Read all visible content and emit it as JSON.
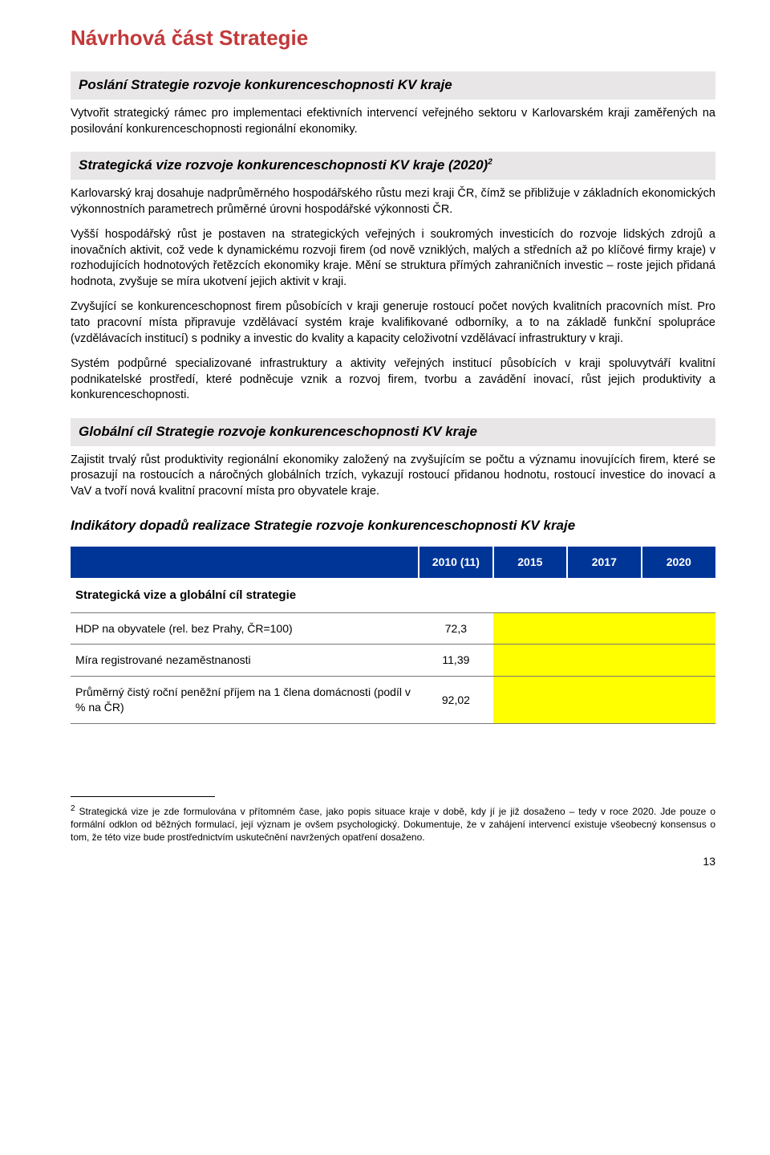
{
  "title": "Návrhová část Strategie",
  "poslani": {
    "header": "Poslání Strategie rozvoje konkurenceschopnosti KV kraje",
    "text": "Vytvořit strategický rámec pro implementaci efektivních intervencí veřejného sektoru v Karlovarském kraji zaměřených na posilování konkurenceschopnosti regionální ekonomiky."
  },
  "vize": {
    "header": "Strategická vize rozvoje konkurenceschopnosti KV kraje (2020)",
    "footref": "2",
    "p1": "Karlovarský kraj dosahuje nadprůměrného hospodářského růstu mezi kraji ČR, čímž se přibližuje v základních ekonomických výkonnostních parametrech průměrné úrovni hospodářské výkonnosti ČR.",
    "p2": "Vyšší hospodářský růst je postaven na strategických veřejných i soukromých investicích do rozvoje lidských zdrojů a inovačních aktivit, což vede k dynamickému rozvoji firem (od nově vzniklých, malých a středních až po klíčové firmy kraje) v rozhodujících hodnotových řetězcích ekonomiky kraje. Mění se struktura přímých zahraničních investic – roste jejich přidaná hodnota, zvyšuje se míra ukotvení jejich aktivit v kraji.",
    "p3": "Zvyšující se konkurenceschopnost firem působících v kraji generuje rostoucí počet nových kvalitních pracovních míst. Pro tato pracovní místa připravuje vzdělávací systém kraje kvalifikované odborníky, a to na základě funkční spolupráce (vzdělávacích institucí) s podniky a investic do kvality a kapacity celoživotní vzdělávací infrastruktury v kraji.",
    "p4": "Systém podpůrné specializované infrastruktury a aktivity veřejných institucí působících v kraji spoluvytváří kvalitní podnikatelské prostředí, které podněcuje vznik a rozvoj firem, tvorbu a zavádění inovací, růst jejich produktivity a konkurenceschopnosti."
  },
  "global": {
    "header": "Globální cíl Strategie rozvoje konkurenceschopnosti KV kraje",
    "text": "Zajistit trvalý růst produktivity regionální ekonomiky založený na zvyšujícím se počtu a významu inovujících firem, které se prosazují na rostoucích a náročných globálních trzích, vykazují rostoucí přidanou hodnotu, rostoucí investice do inovací a VaV a tvoří nová kvalitní pracovní místa pro obyvatele kraje."
  },
  "indicators": {
    "title": "Indikátory dopadů realizace Strategie rozvoje konkurenceschopnosti KV kraje",
    "columns": [
      "",
      "2010 (11)",
      "2015",
      "2017",
      "2020"
    ],
    "subhead": "Strategická vize a globální cíl strategie",
    "rows": [
      {
        "label": "HDP na obyvatele (rel. bez Prahy, ČR=100)",
        "v2010": "72,3"
      },
      {
        "label": "Míra registrované nezaměstnanosti",
        "v2010": "11,39"
      },
      {
        "label": "Průměrný čistý roční peněžní příjem na 1 člena domácnosti (podíl v % na ČR)",
        "v2010": "92,02"
      }
    ]
  },
  "footnote": {
    "ref": "2",
    "text": " Strategická vize je zde formulována v přítomném čase, jako popis situace kraje v době, kdy jí je již dosaženo – tedy v roce 2020. Jde pouze o formální odklon od běžných formulací, její význam je ovšem psychologický. Dokumentuje, že v zahájení intervencí existuje všeobecný konsensus o tom, že této vize bude prostřednictvím uskutečnění navržených opatření dosaženo."
  },
  "page_number": "13"
}
